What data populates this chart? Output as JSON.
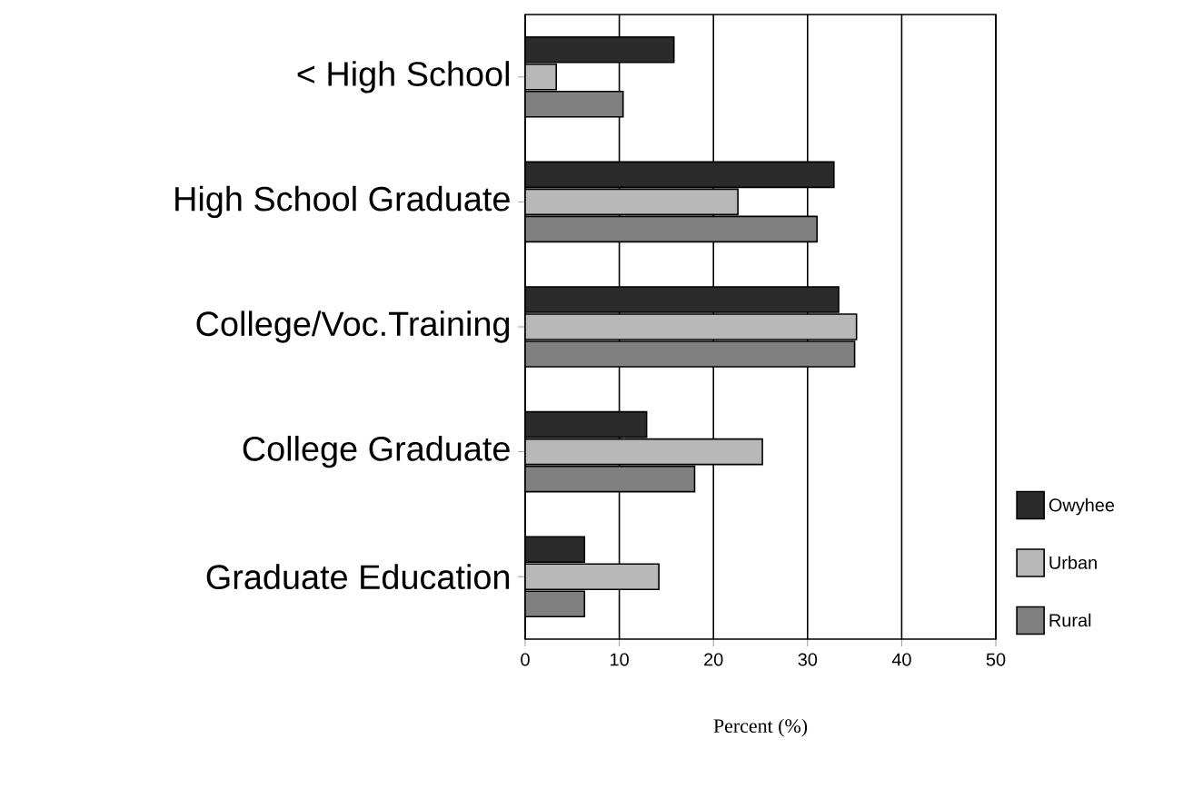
{
  "chart_data": {
    "type": "bar",
    "orientation": "horizontal",
    "xlabel": "Percent (%)",
    "categories": [
      "< High School",
      "High School Graduate",
      "College/Voc.Training",
      "College Graduate",
      "Graduate Education"
    ],
    "series": [
      {
        "name": "Owyhee",
        "color": "#2b2b2b",
        "values": [
          15.8,
          32.8,
          33.3,
          12.9,
          6.3
        ]
      },
      {
        "name": "Urban",
        "color": "#b8b8b8",
        "values": [
          3.3,
          22.6,
          35.2,
          25.2,
          14.2
        ]
      },
      {
        "name": "Rural",
        "color": "#808080",
        "values": [
          10.4,
          31.0,
          35.0,
          18.0,
          6.3
        ]
      }
    ],
    "xlim": [
      0,
      50
    ],
    "xticks": [
      0,
      10,
      20,
      30,
      40,
      50
    ],
    "grid": "x",
    "legend": "right"
  }
}
